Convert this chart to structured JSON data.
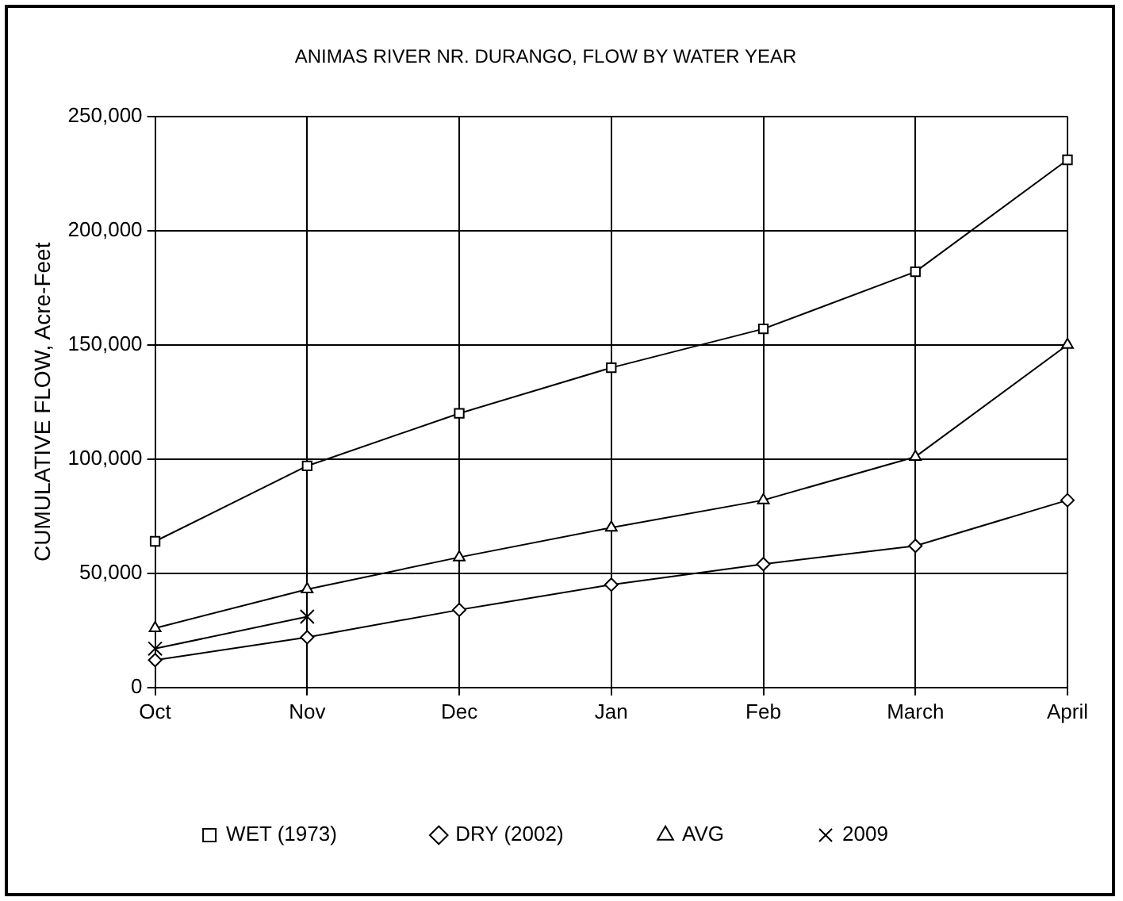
{
  "chart_data": {
    "type": "line",
    "title": "ANIMAS RIVER NR. DURANGO, FLOW BY WATER YEAR",
    "ylabel": "CUMULATIVE FLOW, Acre-Feet",
    "categories": [
      "Oct",
      "Nov",
      "Dec",
      "Jan",
      "Feb",
      "March",
      "April"
    ],
    "series": [
      {
        "name": "WET (1973)",
        "color": "#000000",
        "marker": "square",
        "values": [
          64000,
          97000,
          120000,
          140000,
          157000,
          182000,
          231000
        ]
      },
      {
        "name": "DRY (2002)",
        "color": "#000000",
        "marker": "diamond",
        "values": [
          12000,
          22000,
          34000,
          45000,
          54000,
          62000,
          82000
        ]
      },
      {
        "name": "AVG",
        "color": "#000000",
        "marker": "triangle",
        "values": [
          26000,
          43000,
          57000,
          70000,
          82000,
          101000,
          150000
        ]
      },
      {
        "name": "2009",
        "color": "#000000",
        "marker": "cross",
        "values": [
          17000,
          31000,
          null,
          null,
          null,
          null,
          null
        ]
      }
    ],
    "ylim": [
      0,
      250000
    ],
    "yticks": [
      {
        "value": 0,
        "label": "0"
      },
      {
        "value": 50000,
        "label": "50,000"
      },
      {
        "value": 100000,
        "label": "100,000"
      },
      {
        "value": 150000,
        "label": "150,000"
      },
      {
        "value": 200000,
        "label": "200,000"
      },
      {
        "value": 250000,
        "label": "250,000"
      }
    ],
    "grid": true,
    "legend": "bottom",
    "line_style": "solid"
  }
}
